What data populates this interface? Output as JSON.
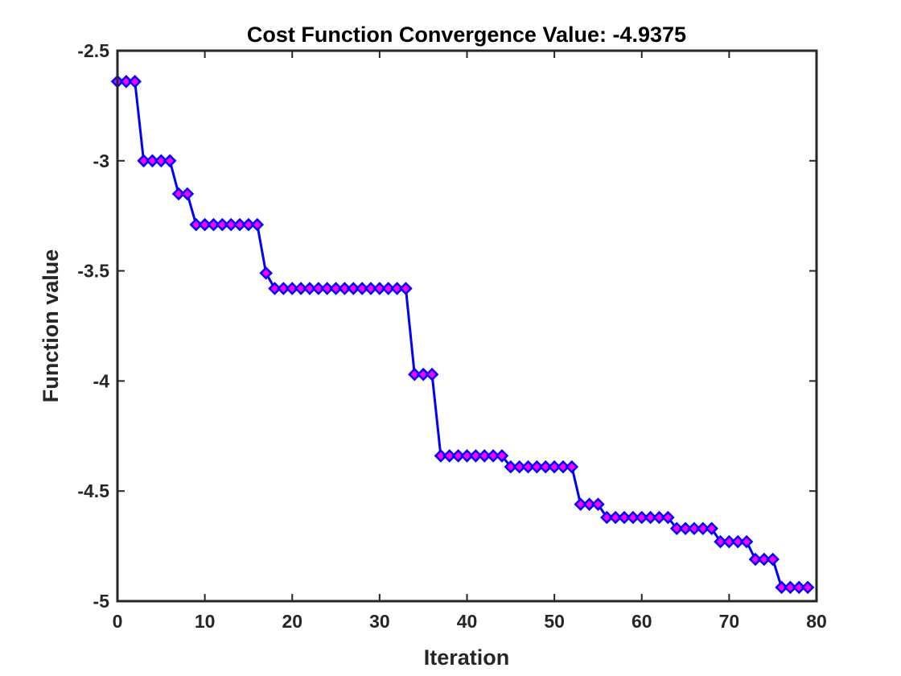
{
  "chart_data": {
    "type": "line",
    "title": "Cost Function Convergence Value: -4.9375",
    "xlabel": "Iteration",
    "ylabel": "Function value",
    "xlim": [
      0,
      80
    ],
    "ylim": [
      -5,
      -2.5
    ],
    "xticks": [
      0,
      10,
      20,
      30,
      40,
      50,
      60,
      70,
      80
    ],
    "yticks": [
      -2.5,
      -3,
      -3.5,
      -4,
      -4.5,
      -5
    ],
    "xtick_labels": [
      "0",
      "10",
      "20",
      "30",
      "40",
      "50",
      "60",
      "70",
      "80"
    ],
    "ytick_labels": [
      "-2.5",
      "-3",
      "-3.5",
      "-4",
      "-4.5",
      "-5"
    ],
    "grid": false,
    "line_color": "#0000ff",
    "marker_edge_color": "#0000ff",
    "marker_face_color": "#ff00ff",
    "marker": "diamond",
    "series": [
      {
        "name": "Function value",
        "x": [
          0,
          1,
          2,
          3,
          4,
          5,
          6,
          7,
          8,
          9,
          10,
          11,
          12,
          13,
          14,
          15,
          16,
          17,
          18,
          19,
          20,
          21,
          22,
          23,
          24,
          25,
          26,
          27,
          28,
          29,
          30,
          31,
          32,
          33,
          34,
          35,
          36,
          37,
          38,
          39,
          40,
          41,
          42,
          43,
          44,
          45,
          46,
          47,
          48,
          49,
          50,
          51,
          52,
          53,
          54,
          55,
          56,
          57,
          58,
          59,
          60,
          61,
          62,
          63,
          64,
          65,
          66,
          67,
          68,
          69,
          70,
          71,
          72,
          73,
          74,
          75,
          76,
          77,
          78,
          79
        ],
        "y": [
          -2.64,
          -2.64,
          -2.64,
          -3.0,
          -3.0,
          -3.0,
          -3.0,
          -3.15,
          -3.15,
          -3.29,
          -3.29,
          -3.29,
          -3.29,
          -3.29,
          -3.29,
          -3.29,
          -3.29,
          -3.51,
          -3.58,
          -3.58,
          -3.58,
          -3.58,
          -3.58,
          -3.58,
          -3.58,
          -3.58,
          -3.58,
          -3.58,
          -3.58,
          -3.58,
          -3.58,
          -3.58,
          -3.58,
          -3.58,
          -3.97,
          -3.97,
          -3.97,
          -4.34,
          -4.34,
          -4.34,
          -4.34,
          -4.34,
          -4.34,
          -4.34,
          -4.34,
          -4.39,
          -4.39,
          -4.39,
          -4.39,
          -4.39,
          -4.39,
          -4.39,
          -4.39,
          -4.56,
          -4.56,
          -4.56,
          -4.62,
          -4.62,
          -4.62,
          -4.62,
          -4.62,
          -4.62,
          -4.62,
          -4.62,
          -4.67,
          -4.67,
          -4.67,
          -4.67,
          -4.67,
          -4.73,
          -4.73,
          -4.73,
          -4.73,
          -4.81,
          -4.81,
          -4.81,
          -4.9375,
          -4.9375,
          -4.9375,
          -4.9375
        ]
      }
    ]
  }
}
